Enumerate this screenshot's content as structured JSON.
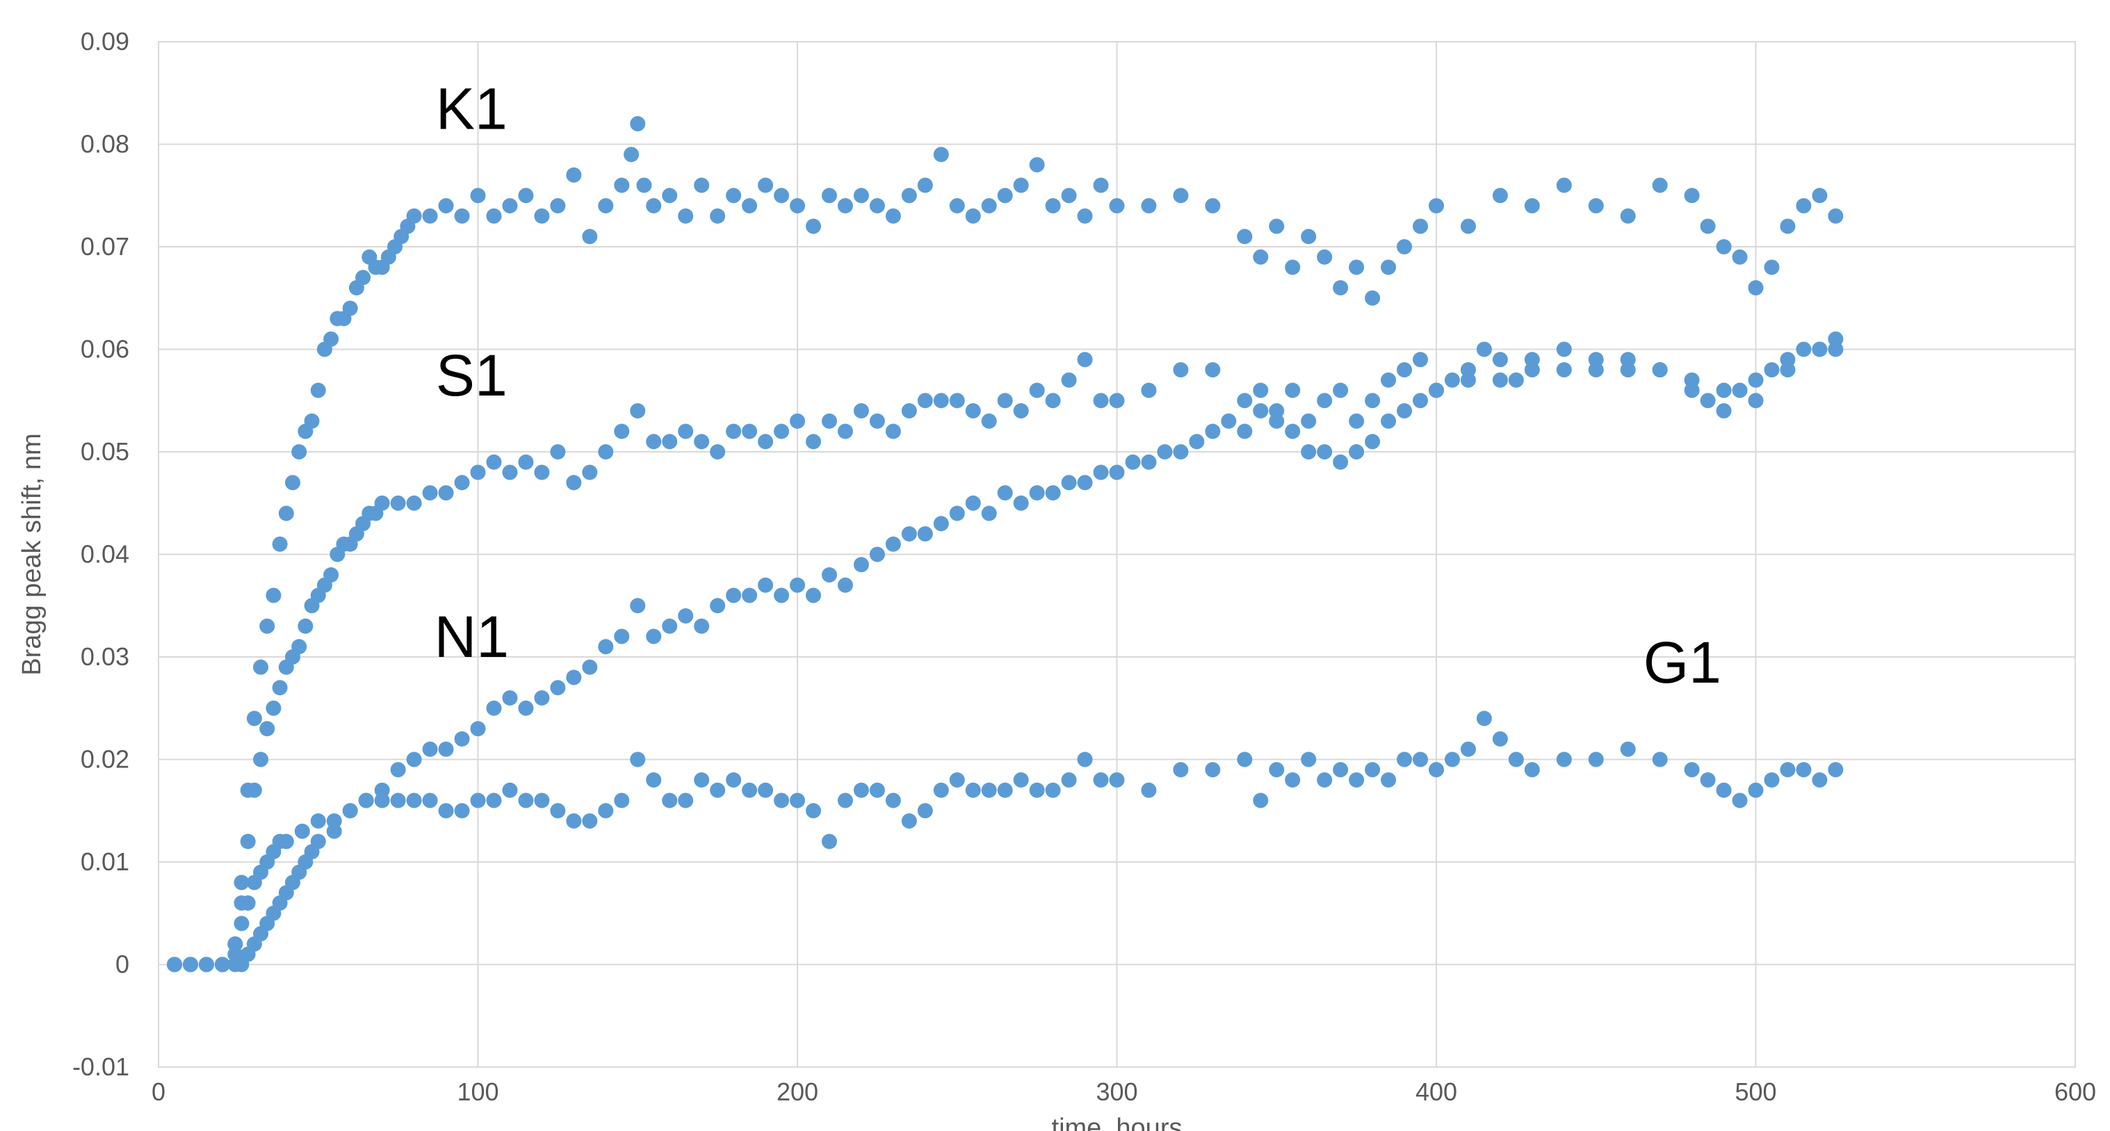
{
  "chart_data": {
    "type": "scatter",
    "title": "",
    "xlabel": "time, hours",
    "ylabel": "Bragg peak shift, nm",
    "xlim": [
      0,
      600
    ],
    "ylim": [
      -0.01,
      0.09
    ],
    "x_ticks": [
      {
        "value": 0,
        "label": "0"
      },
      {
        "value": 100,
        "label": "100"
      },
      {
        "value": 200,
        "label": "200"
      },
      {
        "value": 300,
        "label": "300"
      },
      {
        "value": 400,
        "label": "400"
      },
      {
        "value": 500,
        "label": "500"
      },
      {
        "value": 600,
        "label": "600"
      }
    ],
    "y_ticks": [
      {
        "value": -0.01,
        "label": "-0.01"
      },
      {
        "value": 0,
        "label": "0"
      },
      {
        "value": 0.01,
        "label": "0.01"
      },
      {
        "value": 0.02,
        "label": "0.02"
      },
      {
        "value": 0.03,
        "label": "0.03"
      },
      {
        "value": 0.04,
        "label": "0.04"
      },
      {
        "value": 0.05,
        "label": "0.05"
      },
      {
        "value": 0.06,
        "label": "0.06"
      },
      {
        "value": 0.07,
        "label": "0.07"
      },
      {
        "value": 0.08,
        "label": "0.08"
      },
      {
        "value": 0.09,
        "label": "0.09"
      }
    ],
    "grid": true,
    "legend": "none",
    "marker_color": "#5b9bd5",
    "annotations": [
      {
        "text": "K1",
        "x": 98,
        "y": 0.0815
      },
      {
        "text": "S1",
        "x": 98,
        "y": 0.0555
      },
      {
        "text": "N1",
        "x": 98,
        "y": 0.03
      },
      {
        "text": "G1",
        "x": 477,
        "y": 0.0275
      }
    ],
    "series": [
      {
        "name": "K1",
        "x": [
          5,
          10,
          15,
          20,
          24,
          26,
          28,
          30,
          32,
          34,
          36,
          38,
          40,
          42,
          44,
          46,
          48,
          50,
          52,
          54,
          56,
          58,
          60,
          62,
          64,
          66,
          68,
          70,
          72,
          74,
          76,
          78,
          80,
          85,
          90,
          95,
          100,
          105,
          110,
          115,
          120,
          125,
          130,
          135,
          140,
          145,
          148,
          150,
          152,
          155,
          160,
          165,
          170,
          175,
          180,
          185,
          190,
          195,
          200,
          205,
          210,
          215,
          220,
          225,
          230,
          235,
          240,
          245,
          250,
          255,
          260,
          265,
          270,
          275,
          280,
          285,
          290,
          295,
          300,
          310,
          320,
          330,
          340,
          345,
          350,
          355,
          360,
          365,
          370,
          375,
          380,
          385,
          390,
          395,
          400,
          410,
          420,
          430,
          440,
          450,
          460,
          470,
          480,
          485,
          490,
          495,
          500,
          505,
          510,
          515,
          520,
          525
        ],
        "y": [
          0,
          0,
          0,
          0,
          0.001,
          0.008,
          0.017,
          0.024,
          0.029,
          0.033,
          0.036,
          0.041,
          0.044,
          0.047,
          0.05,
          0.052,
          0.053,
          0.056,
          0.06,
          0.061,
          0.063,
          0.063,
          0.064,
          0.066,
          0.067,
          0.069,
          0.068,
          0.068,
          0.069,
          0.07,
          0.071,
          0.072,
          0.073,
          0.073,
          0.074,
          0.073,
          0.075,
          0.073,
          0.074,
          0.075,
          0.073,
          0.074,
          0.077,
          0.071,
          0.074,
          0.076,
          0.079,
          0.082,
          0.076,
          0.074,
          0.075,
          0.073,
          0.076,
          0.073,
          0.075,
          0.074,
          0.076,
          0.075,
          0.074,
          0.072,
          0.075,
          0.074,
          0.075,
          0.074,
          0.073,
          0.075,
          0.076,
          0.079,
          0.074,
          0.073,
          0.074,
          0.075,
          0.076,
          0.078,
          0.074,
          0.075,
          0.073,
          0.076,
          0.074,
          0.074,
          0.075,
          0.074,
          0.071,
          0.069,
          0.072,
          0.068,
          0.071,
          0.069,
          0.066,
          0.068,
          0.065,
          0.068,
          0.07,
          0.072,
          0.074,
          0.072,
          0.075,
          0.074,
          0.076,
          0.074,
          0.073,
          0.076,
          0.075,
          0.072,
          0.07,
          0.069,
          0.066,
          0.068,
          0.072,
          0.074,
          0.075,
          0.073
        ]
      },
      {
        "name": "S1",
        "x": [
          5,
          10,
          15,
          20,
          24,
          26,
          28,
          30,
          32,
          34,
          36,
          38,
          40,
          42,
          44,
          46,
          48,
          50,
          52,
          54,
          56,
          58,
          60,
          62,
          64,
          66,
          68,
          70,
          75,
          80,
          85,
          90,
          95,
          100,
          105,
          110,
          115,
          120,
          125,
          130,
          135,
          140,
          145,
          150,
          155,
          160,
          165,
          170,
          175,
          180,
          185,
          190,
          195,
          200,
          205,
          210,
          215,
          220,
          225,
          230,
          235,
          240,
          245,
          250,
          255,
          260,
          265,
          270,
          275,
          280,
          285,
          290,
          295,
          300,
          310,
          320,
          330,
          340,
          345,
          350,
          355,
          360,
          365,
          370,
          375,
          380,
          385,
          390,
          395,
          400,
          405,
          410,
          415,
          420,
          425,
          430,
          440,
          450,
          460,
          470,
          480,
          485,
          490,
          495,
          500,
          505,
          510,
          515,
          520,
          525
        ],
        "y": [
          0,
          0,
          0,
          0,
          0.002,
          0.006,
          0.012,
          0.017,
          0.02,
          0.023,
          0.025,
          0.027,
          0.029,
          0.03,
          0.031,
          0.033,
          0.035,
          0.036,
          0.037,
          0.038,
          0.04,
          0.041,
          0.041,
          0.042,
          0.043,
          0.044,
          0.044,
          0.045,
          0.045,
          0.045,
          0.046,
          0.046,
          0.047,
          0.048,
          0.049,
          0.048,
          0.049,
          0.048,
          0.05,
          0.047,
          0.048,
          0.05,
          0.052,
          0.054,
          0.051,
          0.051,
          0.052,
          0.051,
          0.05,
          0.052,
          0.052,
          0.051,
          0.052,
          0.053,
          0.051,
          0.053,
          0.052,
          0.054,
          0.053,
          0.052,
          0.054,
          0.055,
          0.055,
          0.055,
          0.054,
          0.053,
          0.055,
          0.054,
          0.056,
          0.055,
          0.057,
          0.059,
          0.055,
          0.055,
          0.056,
          0.058,
          0.058,
          0.055,
          0.056,
          0.054,
          0.056,
          0.053,
          0.055,
          0.056,
          0.053,
          0.055,
          0.057,
          0.058,
          0.059,
          0.056,
          0.057,
          0.058,
          0.06,
          0.059,
          0.057,
          0.059,
          0.06,
          0.059,
          0.058,
          0.058,
          0.056,
          0.055,
          0.054,
          0.056,
          0.057,
          0.058,
          0.059,
          0.06,
          0.06,
          0.061
        ]
      },
      {
        "name": "N1",
        "x": [
          5,
          10,
          15,
          20,
          24,
          26,
          28,
          30,
          32,
          34,
          36,
          38,
          40,
          42,
          44,
          46,
          48,
          50,
          55,
          60,
          65,
          70,
          75,
          80,
          85,
          90,
          95,
          100,
          105,
          110,
          115,
          120,
          125,
          130,
          135,
          140,
          145,
          150,
          155,
          160,
          165,
          170,
          175,
          180,
          185,
          190,
          195,
          200,
          205,
          210,
          215,
          220,
          225,
          230,
          235,
          240,
          245,
          250,
          255,
          260,
          265,
          270,
          275,
          280,
          285,
          290,
          295,
          300,
          305,
          310,
          315,
          320,
          325,
          330,
          335,
          340,
          345,
          350,
          355,
          360,
          365,
          370,
          375,
          380,
          385,
          390,
          395,
          400,
          410,
          420,
          430,
          440,
          450,
          460,
          470,
          480,
          490,
          500,
          510,
          520,
          525
        ],
        "y": [
          0,
          0,
          0,
          0,
          0,
          0,
          0.001,
          0.002,
          0.003,
          0.004,
          0.005,
          0.006,
          0.007,
          0.008,
          0.009,
          0.01,
          0.011,
          0.012,
          0.013,
          0.015,
          0.016,
          0.017,
          0.019,
          0.02,
          0.021,
          0.021,
          0.022,
          0.023,
          0.025,
          0.026,
          0.025,
          0.026,
          0.027,
          0.028,
          0.029,
          0.031,
          0.032,
          0.035,
          0.032,
          0.033,
          0.034,
          0.033,
          0.035,
          0.036,
          0.036,
          0.037,
          0.036,
          0.037,
          0.036,
          0.038,
          0.037,
          0.039,
          0.04,
          0.041,
          0.042,
          0.042,
          0.043,
          0.044,
          0.045,
          0.044,
          0.046,
          0.045,
          0.046,
          0.046,
          0.047,
          0.047,
          0.048,
          0.048,
          0.049,
          0.049,
          0.05,
          0.05,
          0.051,
          0.052,
          0.053,
          0.052,
          0.054,
          0.053,
          0.052,
          0.05,
          0.05,
          0.049,
          0.05,
          0.051,
          0.053,
          0.054,
          0.055,
          0.056,
          0.057,
          0.057,
          0.058,
          0.058,
          0.058,
          0.059,
          0.058,
          0.057,
          0.056,
          0.055,
          0.058,
          0.06,
          0.06
        ]
      },
      {
        "name": "G1",
        "x": [
          5,
          10,
          15,
          20,
          24,
          26,
          28,
          30,
          32,
          34,
          36,
          38,
          40,
          45,
          50,
          55,
          60,
          65,
          70,
          75,
          80,
          85,
          90,
          95,
          100,
          105,
          110,
          115,
          120,
          125,
          130,
          135,
          140,
          145,
          150,
          155,
          160,
          165,
          170,
          175,
          180,
          185,
          190,
          195,
          200,
          205,
          210,
          215,
          220,
          225,
          230,
          235,
          240,
          245,
          250,
          255,
          260,
          265,
          270,
          275,
          280,
          285,
          290,
          295,
          300,
          310,
          320,
          330,
          340,
          345,
          350,
          355,
          360,
          365,
          370,
          375,
          380,
          385,
          390,
          395,
          400,
          405,
          410,
          415,
          420,
          425,
          430,
          440,
          450,
          460,
          470,
          480,
          485,
          490,
          495,
          500,
          505,
          510,
          515,
          520,
          525
        ],
        "y": [
          0,
          0,
          0,
          0,
          0.002,
          0.004,
          0.006,
          0.008,
          0.009,
          0.01,
          0.011,
          0.012,
          0.012,
          0.013,
          0.014,
          0.014,
          0.015,
          0.016,
          0.016,
          0.016,
          0.016,
          0.016,
          0.015,
          0.015,
          0.016,
          0.016,
          0.017,
          0.016,
          0.016,
          0.015,
          0.014,
          0.014,
          0.015,
          0.016,
          0.02,
          0.018,
          0.016,
          0.016,
          0.018,
          0.017,
          0.018,
          0.017,
          0.017,
          0.016,
          0.016,
          0.015,
          0.012,
          0.016,
          0.017,
          0.017,
          0.016,
          0.014,
          0.015,
          0.017,
          0.018,
          0.017,
          0.017,
          0.017,
          0.018,
          0.017,
          0.017,
          0.018,
          0.02,
          0.018,
          0.018,
          0.017,
          0.019,
          0.019,
          0.02,
          0.016,
          0.019,
          0.018,
          0.02,
          0.018,
          0.019,
          0.018,
          0.019,
          0.018,
          0.02,
          0.02,
          0.019,
          0.02,
          0.021,
          0.024,
          0.022,
          0.02,
          0.019,
          0.02,
          0.02,
          0.021,
          0.02,
          0.019,
          0.018,
          0.017,
          0.016,
          0.017,
          0.018,
          0.019,
          0.019,
          0.018,
          0.019
        ]
      }
    ]
  }
}
